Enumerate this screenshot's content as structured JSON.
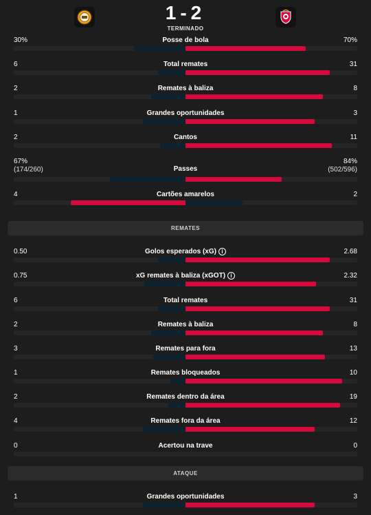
{
  "match": {
    "score": "1-2",
    "status": "TERMINADO",
    "home_team_color": "#f0a424",
    "away_team_color": "#d4093c"
  },
  "stats_overview": [
    {
      "label": "Posse de bola",
      "home": "30%",
      "away": "70%",
      "home_share": 0.3,
      "away_share": 0.7
    },
    {
      "label": "Total remates",
      "home": "6",
      "away": "31",
      "home_share": 0.16,
      "away_share": 0.84
    },
    {
      "label": "Remates à baliza",
      "home": "2",
      "away": "8",
      "home_share": 0.2,
      "away_share": 0.8
    },
    {
      "label": "Grandes oportunidades",
      "home": "1",
      "away": "3",
      "home_share": 0.25,
      "away_share": 0.75
    },
    {
      "label": "Cantos",
      "home": "2",
      "away": "11",
      "home_share": 0.15,
      "away_share": 0.85
    },
    {
      "label": "Passes",
      "home": "67%",
      "home_sub": "(174/260)",
      "away": "84%",
      "away_sub": "(502/596)",
      "home_share": 0.44,
      "away_share": 0.56
    },
    {
      "label": "Cartões amarelos",
      "home": "4",
      "away": "2",
      "home_share": 0.67,
      "away_share": 0.33
    }
  ],
  "sections": {
    "shots_title": "REMATES",
    "attack_title": "ATAQUE"
  },
  "stats_shots": [
    {
      "label": "Golos esperados (xG)",
      "info": true,
      "home": "0.50",
      "away": "2.68",
      "home_share": 0.16,
      "away_share": 0.84
    },
    {
      "label": "xG remates à baliza (xGOT)",
      "info": true,
      "home": "0.75",
      "away": "2.32",
      "home_share": 0.24,
      "away_share": 0.76
    },
    {
      "label": "Total remates",
      "home": "6",
      "away": "31",
      "home_share": 0.16,
      "away_share": 0.84
    },
    {
      "label": "Remates à baliza",
      "home": "2",
      "away": "8",
      "home_share": 0.2,
      "away_share": 0.8
    },
    {
      "label": "Remates para fora",
      "home": "3",
      "away": "13",
      "home_share": 0.19,
      "away_share": 0.81
    },
    {
      "label": "Remates bloqueados",
      "home": "1",
      "away": "10",
      "home_share": 0.09,
      "away_share": 0.91
    },
    {
      "label": "Remates dentro da área",
      "home": "2",
      "away": "19",
      "home_share": 0.1,
      "away_share": 0.9
    },
    {
      "label": "Remates fora da área",
      "home": "4",
      "away": "12",
      "home_share": 0.25,
      "away_share": 0.75
    },
    {
      "label": "Acertou na trave",
      "home": "0",
      "away": "0",
      "home_share": 0,
      "away_share": 0
    }
  ],
  "stats_attack": [
    {
      "label": "Grandes oportunidades",
      "home": "1",
      "away": "3",
      "home_share": 0.25,
      "away_share": 0.75
    }
  ]
}
